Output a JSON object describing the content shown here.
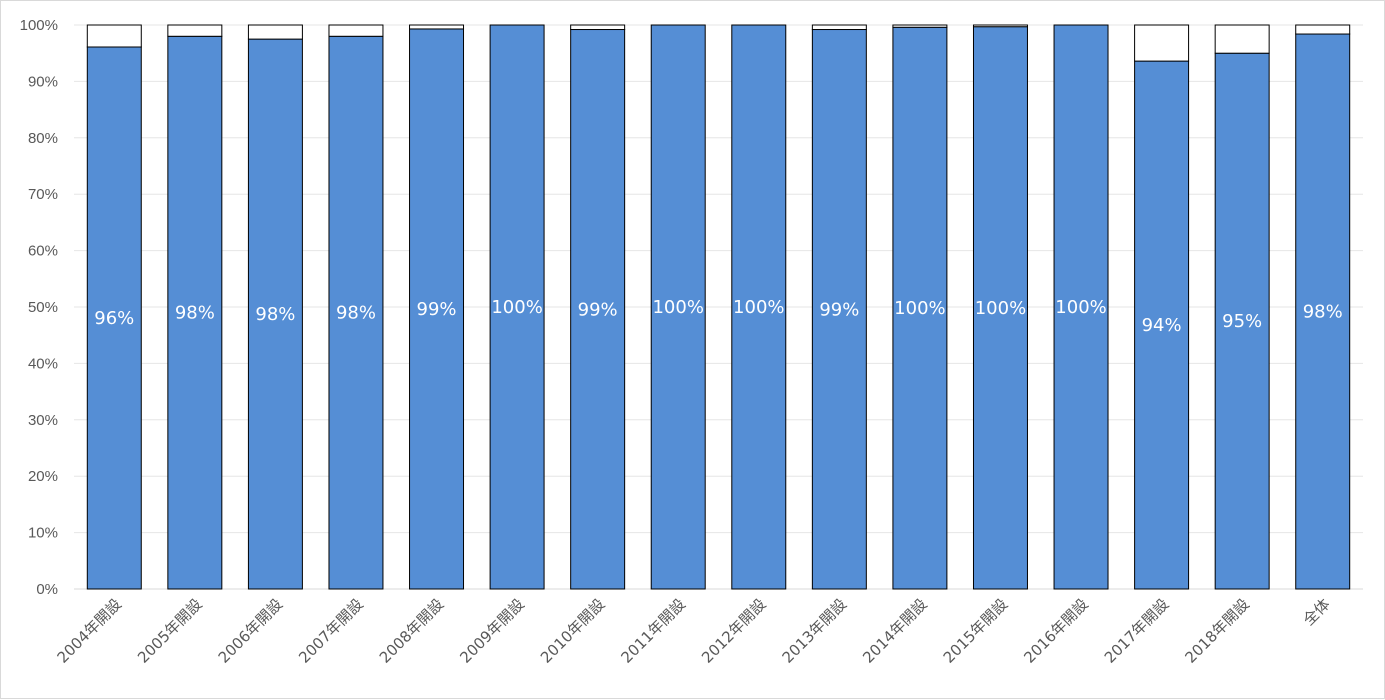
{
  "chart_data": {
    "type": "bar",
    "stacked": true,
    "percent_stacked": true,
    "title": "",
    "xlabel": "",
    "ylabel": "",
    "ylim": [
      0,
      100
    ],
    "y_ticks": [
      "0%",
      "10%",
      "20%",
      "30%",
      "40%",
      "50%",
      "60%",
      "70%",
      "80%",
      "90%",
      "100%"
    ],
    "grid": true,
    "legend": "none",
    "categories": [
      "2004年開設",
      "2005年開設",
      "2006年開設",
      "2007年開設",
      "2008年開設",
      "2009年開設",
      "2010年開設",
      "2011年開設",
      "2012年開設",
      "2013年開設",
      "2014年開設",
      "2015年開設",
      "2016年開設",
      "2017年開設",
      "2018年開設",
      "全体"
    ],
    "series": [
      {
        "color": "#558ed5",
        "values": [
          96.1,
          98.0,
          97.5,
          98.0,
          99.3,
          100,
          99.2,
          100,
          100,
          99.2,
          99.6,
          99.7,
          100,
          93.6,
          95.0,
          98.4
        ],
        "data_labels": [
          "96%",
          "98%",
          "98%",
          "98%",
          "99%",
          "100%",
          "99%",
          "100%",
          "100%",
          "99%",
          "100%",
          "100%",
          "100%",
          "94%",
          "95%",
          "98%"
        ]
      },
      {
        "color": "#ffffff",
        "values": [
          3.9,
          2.0,
          2.5,
          2.0,
          0.7,
          0,
          0.8,
          0,
          0,
          0.8,
          0.4,
          0.3,
          0,
          6.4,
          5.0,
          1.6
        ]
      }
    ]
  }
}
